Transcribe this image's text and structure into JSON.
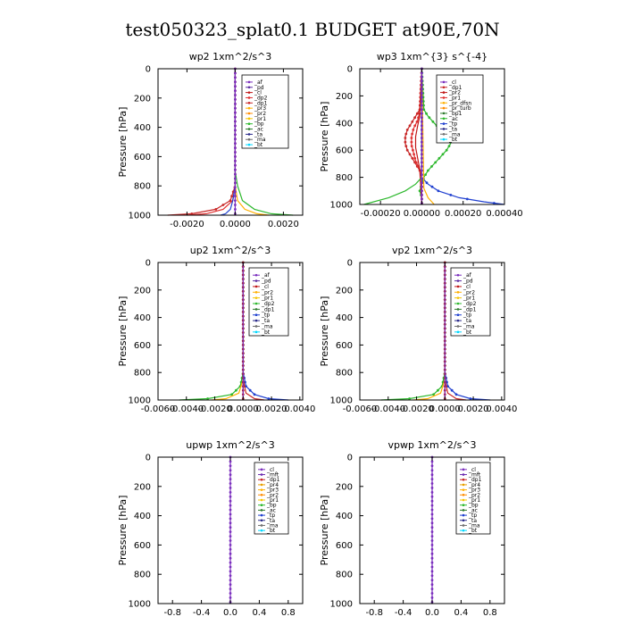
{
  "figure_title": "test050323_splat0.1  BUDGET at90E,70N",
  "colors": {
    "ac": "#7b2fbe",
    "pd": "#5a2aa0",
    "cl": "#c01818",
    "dp2": "#e03030",
    "dp1": "#c82828",
    "pr3": "#ffb000",
    "pr2": "#ff8c00",
    "pr1": "#f5c400",
    "pr4": "#e8a000",
    "bp": "#2db82d",
    "ac2": "#2d7a2d",
    "tp": "#2040d0",
    "ta": "#2a2a8a",
    "ma": "#707070",
    "bt": "#00d8ff",
    "mft": "#6a2ab0"
  },
  "chart_data": [
    {
      "type": "line",
      "title": "wp2   1xm^2/s^3",
      "ylabel": "Pressure  [hPa]",
      "ylim": [
        1000,
        0
      ],
      "xlim": [
        -0.0032,
        0.0028
      ],
      "xticks": [
        "-0.0020",
        "0.0000",
        "0.0020"
      ],
      "xtick_values": [
        -0.002,
        0.0,
        0.002
      ],
      "yticks": [
        "0",
        "200",
        "400",
        "600",
        "800",
        "1000"
      ],
      "legend": [
        "_af",
        "_pd",
        "_cl",
        "_dp2",
        "_dp1",
        "_pr3",
        "_pr2",
        "_pr1",
        "_bp",
        "_ac",
        "_ta",
        "_ma",
        "_bt"
      ],
      "legend_colors": [
        "#7b2fbe",
        "#5a2aa0",
        "#c01818",
        "#e03030",
        "#c82828",
        "#ffb000",
        "#ff8c00",
        "#f5c400",
        "#2db82d",
        "#2d7a2d",
        "#2a2a8a",
        "#707070",
        "#00d8ff"
      ],
      "series": [
        {
          "p": [
            0,
            700,
            800,
            900,
            960,
            990,
            1000
          ],
          "x": [
            0,
            0,
            0,
            -0.0002,
            -0.0008,
            -0.0018,
            -0.0028
          ],
          "color": "#c82828",
          "markers": true
        },
        {
          "p": [
            0,
            700,
            800,
            900,
            960,
            990,
            1000
          ],
          "x": [
            0,
            0,
            0,
            -0.0001,
            -0.0005,
            -0.0012,
            -0.002
          ],
          "color": "#e03030"
        },
        {
          "p": [
            0,
            700,
            800,
            900,
            960,
            990,
            1000
          ],
          "x": [
            0,
            0,
            0.0001,
            0.0003,
            0.0008,
            0.0015,
            0.0024
          ],
          "color": "#2db82d"
        },
        {
          "p": [
            0,
            800,
            900,
            960,
            990,
            1000
          ],
          "x": [
            0,
            0,
            0.0001,
            0.0004,
            0.0009,
            0.0014
          ],
          "color": "#ffb000"
        },
        {
          "p": [
            0,
            800,
            900,
            960,
            990,
            1000
          ],
          "x": [
            0,
            0,
            -0.0001,
            -0.0002,
            -0.0004,
            -0.0006
          ],
          "color": "#2040d0"
        },
        {
          "p": [
            0,
            1000
          ],
          "x": [
            0,
            0
          ],
          "color": "#7b2fbe",
          "markers": true
        }
      ]
    },
    {
      "type": "line",
      "title": "wp3   1xm^{3} s^{-4}",
      "ylabel": "Pressure  [hPa]",
      "ylim": [
        1000,
        0
      ],
      "xlim": [
        -0.0003,
        0.0004
      ],
      "xticks": [
        "-0.00020",
        "0.00000",
        "0.00020",
        "0.00040"
      ],
      "xtick_values": [
        -0.0002,
        0.0,
        0.0002,
        0.0004
      ],
      "yticks": [
        "0",
        "200",
        "400",
        "600",
        "800",
        "1000"
      ],
      "legend": [
        "_cl",
        "_dp1",
        "_pr2",
        "_pr1",
        "_pr_dfsn",
        "_pr_turb",
        "_bp1",
        "_ac",
        "_tp",
        "_ta",
        "_ma",
        "_bt"
      ],
      "legend_colors": [
        "#7b2fbe",
        "#c82828",
        "#c01818",
        "#e03030",
        "#ffb000",
        "#ff8c00",
        "#2d7a2d",
        "#2db82d",
        "#2040d0",
        "#2a2a8a",
        "#707070",
        "#00d8ff"
      ],
      "series": [
        {
          "p": [
            0,
            300,
            350,
            400,
            450,
            500,
            550,
            600,
            650,
            700,
            750,
            800,
            850,
            900,
            950,
            1000
          ],
          "x": [
            0,
            1e-05,
            3e-05,
            6e-05,
            9e-05,
            0.00012,
            0.00014,
            0.00012,
            9e-05,
            6e-05,
            3e-05,
            1e-05,
            0,
            -1e-05,
            0,
            0
          ],
          "color": "#2db82d",
          "markers": true
        },
        {
          "p": [
            0,
            300,
            350,
            400,
            450,
            500,
            550,
            600,
            650,
            700,
            750,
            800,
            850,
            900,
            1000
          ],
          "x": [
            0,
            -1e-05,
            -3e-05,
            -5e-05,
            -7e-05,
            -8e-05,
            -8e-05,
            -7e-05,
            -5e-05,
            -3e-05,
            -1e-05,
            0,
            0,
            0,
            0
          ],
          "color": "#c82828",
          "markers": true
        },
        {
          "p": [
            0,
            320,
            380,
            440,
            500,
            560,
            620,
            680,
            740,
            800,
            1000
          ],
          "x": [
            0,
            -1e-05,
            -2e-05,
            -4e-05,
            -5e-05,
            -5e-05,
            -4e-05,
            -3e-05,
            -1e-05,
            0,
            0
          ],
          "color": "#e03030",
          "markers": true
        },
        {
          "p": [
            0,
            350,
            420,
            500,
            580,
            660,
            740,
            1000
          ],
          "x": [
            0,
            -1e-05,
            -2e-05,
            -3e-05,
            -3e-05,
            -2e-05,
            -1e-05,
            0
          ],
          "color": "#c01818"
        },
        {
          "p": [
            0,
            800,
            850,
            900,
            950,
            980,
            1000
          ],
          "x": [
            0,
            0,
            3e-05,
            8e-05,
            0.00018,
            0.0003,
            0.0004
          ],
          "color": "#2040d0",
          "markers": true
        },
        {
          "p": [
            0,
            800,
            850,
            900,
            950,
            1000
          ],
          "x": [
            0,
            0,
            -3e-05,
            -8e-05,
            -0.00016,
            -0.00028
          ],
          "color": "#2db82d"
        },
        {
          "p": [
            0,
            880,
            950,
            1000
          ],
          "x": [
            0,
            1e-05,
            3e-05,
            6e-05
          ],
          "color": "#ffb000"
        },
        {
          "p": [
            0,
            1000
          ],
          "x": [
            0,
            0
          ],
          "color": "#7b2fbe",
          "markers": true
        }
      ]
    },
    {
      "type": "line",
      "title": "up2   1xm^2/s^3",
      "ylabel": "Pressure  [hPa]",
      "ylim": [
        1000,
        0
      ],
      "xlim": [
        -0.006,
        0.0042
      ],
      "xticks": [
        "-0.0060",
        "-0.0040",
        "-0.0020",
        "0.0000",
        "0.0020",
        "0.0040"
      ],
      "xtick_values": [
        -0.006,
        -0.004,
        -0.002,
        0.0,
        0.002,
        0.004
      ],
      "yticks": [
        "0",
        "200",
        "400",
        "600",
        "800",
        "1000"
      ],
      "legend": [
        "_af",
        "_pd",
        "_cl",
        "_pr2",
        "_pr1",
        "_dp2",
        "_dp1",
        "_tp",
        "_ta",
        "_ma",
        "_bt"
      ],
      "legend_colors": [
        "#7b2fbe",
        "#5a2aa0",
        "#c01818",
        "#ffb000",
        "#f5c400",
        "#2db82d",
        "#2d7a2d",
        "#2040d0",
        "#2a2a8a",
        "#707070",
        "#00d8ff"
      ],
      "series": [
        {
          "p": [
            0,
            800,
            900,
            960,
            990,
            1000
          ],
          "x": [
            0,
            0,
            -0.0002,
            -0.0008,
            -0.0025,
            -0.0045
          ],
          "color": "#2db82d",
          "markers": true
        },
        {
          "p": [
            0,
            800,
            900,
            960,
            990,
            1000
          ],
          "x": [
            0,
            0,
            0.0002,
            0.0008,
            0.0018,
            0.0032
          ],
          "color": "#2040d0",
          "markers": true
        },
        {
          "p": [
            0,
            850,
            950,
            990,
            1000
          ],
          "x": [
            0,
            0,
            -0.0003,
            -0.0012,
            -0.0022
          ],
          "color": "#ffb000"
        },
        {
          "p": [
            0,
            850,
            950,
            990,
            1000
          ],
          "x": [
            0,
            0,
            0.0002,
            0.0008,
            0.0015
          ],
          "color": "#c82828"
        },
        {
          "p": [
            0,
            1000
          ],
          "x": [
            0,
            0
          ],
          "color": "#c01818",
          "markers": true
        },
        {
          "p": [
            0,
            1000
          ],
          "x": [
            0,
            0
          ],
          "color": "#7b2fbe"
        }
      ]
    },
    {
      "type": "line",
      "title": "vp2   1xm^2/s^3",
      "ylabel": "Pressure  [hPa]",
      "ylim": [
        1000,
        0
      ],
      "xlim": [
        -0.006,
        0.0042
      ],
      "xticks": [
        "-0.0060",
        "-0.0040",
        "-0.0020",
        "0.0000",
        "0.0020",
        "0.0040"
      ],
      "xtick_values": [
        -0.006,
        -0.004,
        -0.002,
        0.0,
        0.002,
        0.004
      ],
      "yticks": [
        "0",
        "200",
        "400",
        "600",
        "800",
        "1000"
      ],
      "legend": [
        "_af",
        "_pd",
        "_cl",
        "_pr2",
        "_pr1",
        "_dp2",
        "_dp1",
        "_tp",
        "_ta",
        "_ma",
        "_bt"
      ],
      "legend_colors": [
        "#7b2fbe",
        "#5a2aa0",
        "#c01818",
        "#ffb000",
        "#f5c400",
        "#2db82d",
        "#2d7a2d",
        "#2040d0",
        "#2a2a8a",
        "#707070",
        "#00d8ff"
      ],
      "series": [
        {
          "p": [
            0,
            800,
            900,
            960,
            990,
            1000
          ],
          "x": [
            0,
            0,
            -0.0002,
            -0.0008,
            -0.0025,
            -0.0045
          ],
          "color": "#2db82d",
          "markers": true
        },
        {
          "p": [
            0,
            800,
            900,
            960,
            990,
            1000
          ],
          "x": [
            0,
            0,
            0.0002,
            0.0008,
            0.0018,
            0.0032
          ],
          "color": "#2040d0",
          "markers": true
        },
        {
          "p": [
            0,
            850,
            950,
            990,
            1000
          ],
          "x": [
            0,
            0,
            -0.0003,
            -0.0012,
            -0.0022
          ],
          "color": "#ffb000"
        },
        {
          "p": [
            0,
            850,
            950,
            990,
            1000
          ],
          "x": [
            0,
            0,
            0.0002,
            0.0008,
            0.0015
          ],
          "color": "#c82828"
        },
        {
          "p": [
            0,
            1000
          ],
          "x": [
            0,
            0
          ],
          "color": "#c01818",
          "markers": true
        },
        {
          "p": [
            0,
            1000
          ],
          "x": [
            0,
            0
          ],
          "color": "#7b2fbe"
        }
      ]
    },
    {
      "type": "line",
      "title": "upwp   1xm^2/s^3",
      "ylabel": "Pressure  [hPa]",
      "ylim": [
        1000,
        0
      ],
      "xlim": [
        -1.0,
        1.0
      ],
      "xticks": [
        "-0.8",
        "-0.4",
        "0.0",
        "0.4",
        "0.8"
      ],
      "xtick_values": [
        -0.8,
        -0.4,
        0.0,
        0.4,
        0.8
      ],
      "yticks": [
        "0",
        "200",
        "400",
        "600",
        "800",
        "1000"
      ],
      "legend": [
        "_cl",
        "_mft",
        "_dp1",
        "_pr4",
        "_pr3",
        "_pr2",
        "_pr1",
        "_bp",
        "_ac",
        "_tp",
        "_ta",
        "_ma",
        "_bt"
      ],
      "legend_colors": [
        "#7b2fbe",
        "#6a2ab0",
        "#c82828",
        "#e8a000",
        "#ffb000",
        "#ff8c00",
        "#f5c400",
        "#2db82d",
        "#2d7a2d",
        "#2040d0",
        "#2a2a8a",
        "#707070",
        "#00d8ff"
      ],
      "series": [
        {
          "p": [
            0,
            1000
          ],
          "x": [
            0,
            0
          ],
          "color": "#7b2fbe",
          "markers": true
        }
      ]
    },
    {
      "type": "line",
      "title": "vpwp   1xm^2/s^3",
      "ylabel": "Pressure  [hPa]",
      "ylim": [
        1000,
        0
      ],
      "xlim": [
        -1.0,
        1.0
      ],
      "xticks": [
        "-0.8",
        "-0.4",
        "0.0",
        "0.4",
        "0.8"
      ],
      "xtick_values": [
        -0.8,
        -0.4,
        0.0,
        0.4,
        0.8
      ],
      "yticks": [
        "0",
        "200",
        "400",
        "600",
        "800",
        "1000"
      ],
      "legend": [
        "_cl",
        "_mft",
        "_dp1",
        "_pr4",
        "_pr3",
        "_pr2",
        "_pr1",
        "_bp",
        "_ac",
        "_tp",
        "_ta",
        "_ma",
        "_bt"
      ],
      "legend_colors": [
        "#7b2fbe",
        "#6a2ab0",
        "#c82828",
        "#e8a000",
        "#ffb000",
        "#ff8c00",
        "#f5c400",
        "#2db82d",
        "#2d7a2d",
        "#2040d0",
        "#2a2a8a",
        "#707070",
        "#00d8ff"
      ],
      "series": [
        {
          "p": [
            0,
            1000
          ],
          "x": [
            0,
            0
          ],
          "color": "#7b2fbe",
          "markers": true
        }
      ]
    }
  ]
}
